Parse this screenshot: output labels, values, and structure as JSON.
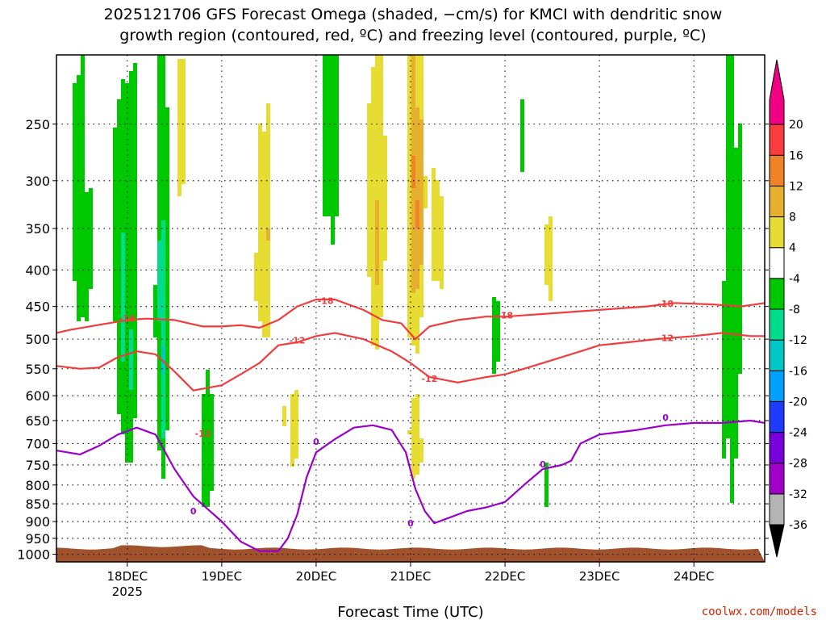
{
  "chart_data": {
    "type": "heatmap",
    "title_lines": [
      "2025121706 GFS Forecast Omega (shaded, −cm/s) for KMCI with dendritic snow",
      "growth region (contoured, red, ºC) and freezing level (contoured, purple, ºC)"
    ],
    "xlabel": "Forecast Time (UTC)",
    "ylabel": "",
    "x_range": [
      "2025-12-17 06Z",
      "2025-12-24 18Z"
    ],
    "x_days": [
      17.25,
      24.75
    ],
    "x_ticks": [
      {
        "day": 18,
        "label": "18DEC",
        "sublabel": "2025"
      },
      {
        "day": 19,
        "label": "19DEC"
      },
      {
        "day": 20,
        "label": "20DEC"
      },
      {
        "day": 21,
        "label": "21DEC"
      },
      {
        "day": 22,
        "label": "22DEC"
      },
      {
        "day": 23,
        "label": "23DEC"
      },
      {
        "day": 24,
        "label": "24DEC"
      }
    ],
    "y_ticks": [
      250,
      300,
      350,
      400,
      450,
      500,
      550,
      600,
      650,
      700,
      750,
      800,
      850,
      900,
      950,
      1000
    ],
    "y_range_hpa": [
      200,
      1025
    ],
    "colorbar": {
      "levels": [
        -36,
        -32,
        -28,
        -24,
        -20,
        -16,
        -12,
        -8,
        -4,
        4,
        8,
        12,
        16,
        20
      ],
      "colors": [
        "#b4b4b4",
        "#a000c8",
        "#7800dc",
        "#1e3cff",
        "#00a0ff",
        "#00c8c8",
        "#00dc8c",
        "#00c800",
        "#ffffff",
        "#e6dc32",
        "#e6af2d",
        "#f08228",
        "#fa3c3c",
        "#f00082"
      ],
      "under_color": "#000000",
      "over_color": "#f00082"
    },
    "contours": [
      {
        "name": "-18",
        "color": "#f03c3c",
        "label": "-18",
        "points": [
          [
            17.25,
            490
          ],
          [
            17.4,
            485
          ],
          [
            17.6,
            480
          ],
          [
            17.8,
            475
          ],
          [
            18.0,
            470
          ],
          [
            18.2,
            468
          ],
          [
            18.5,
            470
          ],
          [
            18.8,
            480
          ],
          [
            19.0,
            480
          ],
          [
            19.2,
            478
          ],
          [
            19.4,
            482
          ],
          [
            19.6,
            470
          ],
          [
            19.8,
            450
          ],
          [
            20.0,
            440
          ],
          [
            20.2,
            440
          ],
          [
            20.5,
            455
          ],
          [
            20.7,
            470
          ],
          [
            20.9,
            475
          ],
          [
            21.05,
            500
          ],
          [
            21.2,
            480
          ],
          [
            21.5,
            470
          ],
          [
            21.8,
            465
          ],
          [
            22.0,
            465
          ],
          [
            22.5,
            460
          ],
          [
            23.0,
            455
          ],
          [
            23.5,
            450
          ],
          [
            23.8,
            445
          ],
          [
            24.2,
            447
          ],
          [
            24.5,
            450
          ],
          [
            24.75,
            445
          ]
        ],
        "label_positions": [
          [
            18.0,
            468
          ],
          [
            20.1,
            442
          ],
          [
            22.0,
            463
          ],
          [
            23.7,
            446
          ]
        ]
      },
      {
        "name": "-12",
        "color": "#f03c3c",
        "label": "-12",
        "points": [
          [
            17.25,
            545
          ],
          [
            17.5,
            550
          ],
          [
            17.7,
            548
          ],
          [
            17.9,
            530
          ],
          [
            18.1,
            520
          ],
          [
            18.3,
            525
          ],
          [
            18.5,
            555
          ],
          [
            18.7,
            590
          ],
          [
            19.0,
            580
          ],
          [
            19.2,
            560
          ],
          [
            19.4,
            540
          ],
          [
            19.6,
            510
          ],
          [
            19.8,
            505
          ],
          [
            20.0,
            495
          ],
          [
            20.2,
            490
          ],
          [
            20.5,
            500
          ],
          [
            20.8,
            520
          ],
          [
            21.0,
            540
          ],
          [
            21.2,
            565
          ],
          [
            21.5,
            575
          ],
          [
            21.8,
            565
          ],
          [
            22.0,
            560
          ],
          [
            22.2,
            550
          ],
          [
            22.5,
            535
          ],
          [
            22.8,
            520
          ],
          [
            23.0,
            510
          ],
          [
            23.3,
            505
          ],
          [
            23.6,
            500
          ],
          [
            24.0,
            495
          ],
          [
            24.3,
            490
          ],
          [
            24.6,
            495
          ],
          [
            24.75,
            495
          ]
        ],
        "label_positions": [
          [
            18.8,
            678
          ],
          [
            19.8,
            502
          ],
          [
            21.2,
            568
          ],
          [
            23.7,
            498
          ]
        ]
      },
      {
        "name": "0 (freezing)",
        "color": "#9a00c8",
        "label": "0",
        "points": [
          [
            17.25,
            716
          ],
          [
            17.5,
            725
          ],
          [
            17.7,
            705
          ],
          [
            17.9,
            680
          ],
          [
            18.1,
            665
          ],
          [
            18.3,
            680
          ],
          [
            18.5,
            760
          ],
          [
            18.7,
            830
          ],
          [
            19.0,
            900
          ],
          [
            19.2,
            960
          ],
          [
            19.4,
            990
          ],
          [
            19.6,
            990
          ],
          [
            19.7,
            950
          ],
          [
            19.8,
            880
          ],
          [
            19.9,
            780
          ],
          [
            20.0,
            720
          ],
          [
            20.2,
            690
          ],
          [
            20.4,
            665
          ],
          [
            20.6,
            660
          ],
          [
            20.8,
            670
          ],
          [
            20.95,
            720
          ],
          [
            21.05,
            810
          ],
          [
            21.15,
            870
          ],
          [
            21.25,
            905
          ],
          [
            21.4,
            890
          ],
          [
            21.6,
            870
          ],
          [
            21.8,
            860
          ],
          [
            22.0,
            845
          ],
          [
            22.2,
            800
          ],
          [
            22.4,
            760
          ],
          [
            22.6,
            750
          ],
          [
            22.7,
            740
          ],
          [
            22.8,
            700
          ],
          [
            23.0,
            680
          ],
          [
            23.2,
            675
          ],
          [
            23.4,
            670
          ],
          [
            23.7,
            660
          ],
          [
            24.0,
            655
          ],
          [
            24.3,
            655
          ],
          [
            24.6,
            650
          ],
          [
            24.75,
            655
          ]
        ],
        "label_positions": [
          [
            18.7,
            870
          ],
          [
            20.0,
            696
          ],
          [
            21.0,
            905
          ],
          [
            22.4,
            748
          ],
          [
            23.7,
            643
          ]
        ]
      }
    ],
    "terrain": {
      "color": "#a0522d",
      "surface_hpa": 982
    }
  },
  "credit": "coolwx.com/models"
}
